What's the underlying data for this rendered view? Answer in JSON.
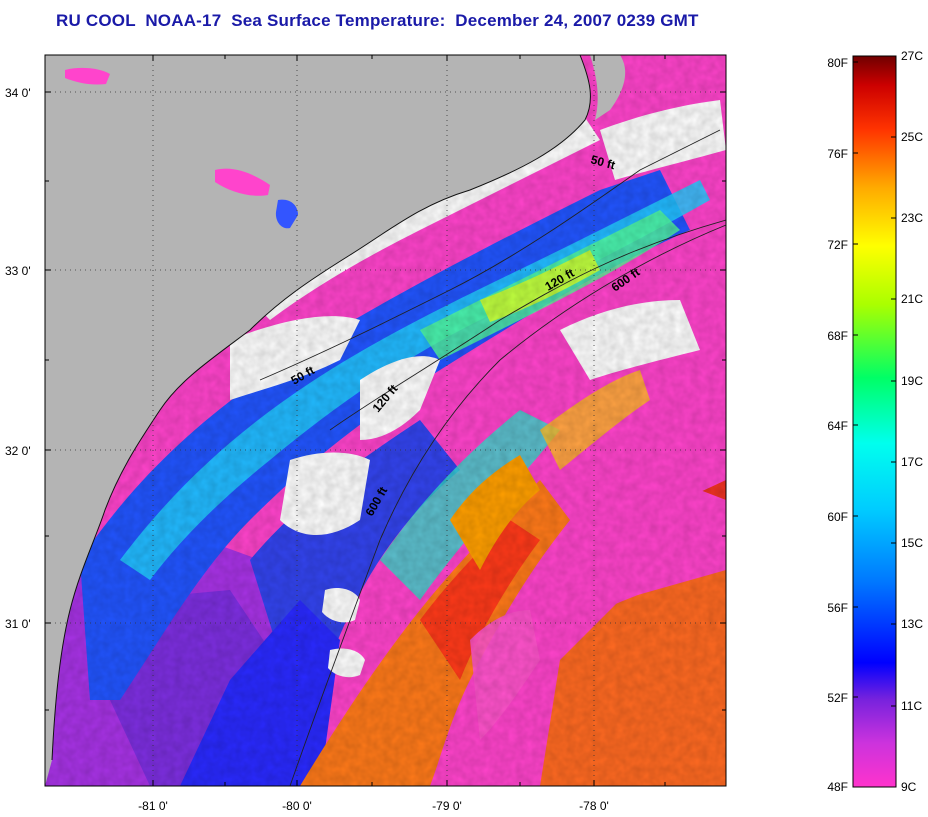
{
  "title": "RU COOL  NOAA-17  Sea Surface Temperature:  December 24, 2007 0239 GMT",
  "map": {
    "lon_ticks": [
      "-81 0'",
      "-80 0'",
      "-79 0'",
      "-78 0'"
    ],
    "lat_ticks": [
      "34 0'",
      "33 0'",
      "32 0'",
      "31 0'"
    ],
    "isobaths": [
      "50 ft",
      "120 ft",
      "600 ft",
      "50 ft",
      "120 ft",
      "600 ft"
    ],
    "colors": {
      "land": "#b4b4b4",
      "cloud": "#ffffff",
      "background": "#ffffff"
    }
  },
  "colorbar": {
    "fahrenheit": [
      "80F",
      "76F",
      "72F",
      "68F",
      "64F",
      "60F",
      "56F",
      "52F",
      "48F"
    ],
    "celsius": [
      "27C",
      "25C",
      "23C",
      "21C",
      "19C",
      "17C",
      "15C",
      "13C",
      "11C",
      "9C"
    ],
    "range_f": [
      48,
      80
    ],
    "range_c": [
      9,
      27
    ],
    "colors": [
      "#ff33cc",
      "#9a2ee0",
      "#1010ff",
      "#00aaff",
      "#00ffff",
      "#00ff66",
      "#ffff00",
      "#ff9900",
      "#ff0000",
      "#7a0000"
    ]
  }
}
